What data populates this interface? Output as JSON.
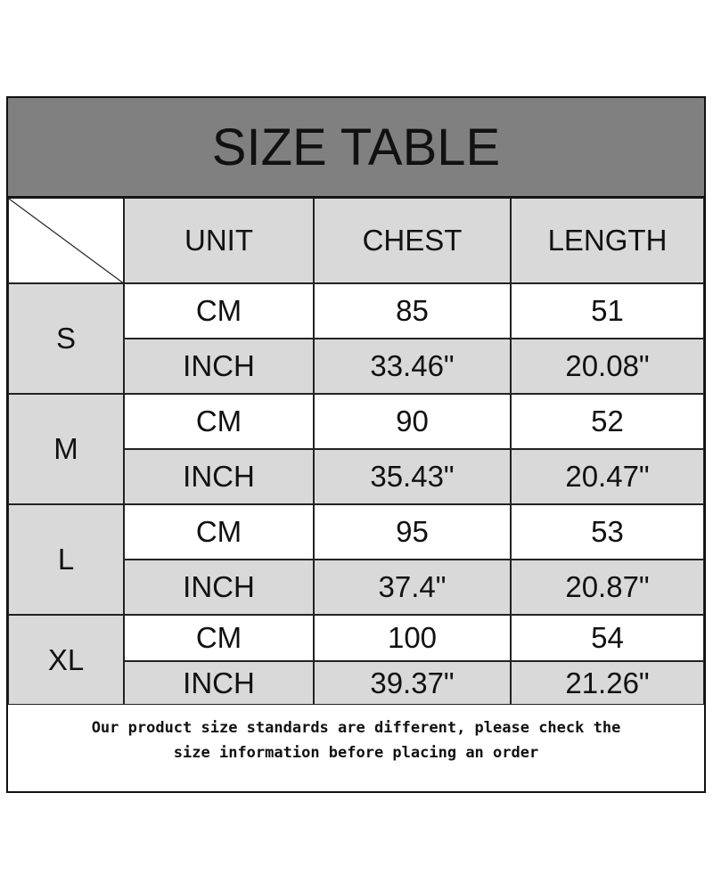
{
  "title": "SIZE TABLE",
  "headers": [
    "UNIT",
    "CHEST",
    "LENGTH"
  ],
  "rows": [
    {
      "size": "S",
      "cm": {
        "unit": "CM",
        "chest": "85",
        "length": "51"
      },
      "inch": {
        "unit": "INCH",
        "chest": "33.46\"",
        "length": "20.08\""
      }
    },
    {
      "size": "M",
      "cm": {
        "unit": "CM",
        "chest": "90",
        "length": "52"
      },
      "inch": {
        "unit": "INCH",
        "chest": "35.43\"",
        "length": "20.47\""
      }
    },
    {
      "size": "L",
      "cm": {
        "unit": "CM",
        "chest": "95",
        "length": "53"
      },
      "inch": {
        "unit": "INCH",
        "chest": "37.4\"",
        "length": "20.87\""
      }
    },
    {
      "size": "XL",
      "cm": {
        "unit": "CM",
        "chest": "100",
        "length": "54"
      },
      "inch": {
        "unit": "INCH",
        "chest": "39.37\"",
        "length": "21.26\""
      }
    }
  ],
  "note_line1": "Our product size standards are different, please check the",
  "note_line2": "size information before placing an order",
  "colors": {
    "title_bg": "#808080",
    "cell_gray": "#d9d9d9",
    "cell_white": "#ffffff"
  }
}
